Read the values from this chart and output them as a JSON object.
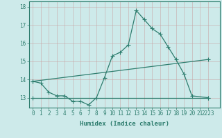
{
  "line1_x": [
    0,
    1,
    2,
    3,
    4,
    5,
    6,
    7,
    8,
    9,
    10,
    11,
    12,
    13,
    14,
    15,
    16,
    17,
    18,
    19,
    20,
    22
  ],
  "line1_y": [
    13.9,
    13.8,
    13.3,
    13.1,
    13.1,
    12.8,
    12.8,
    12.6,
    13.0,
    14.1,
    15.3,
    15.5,
    15.9,
    17.8,
    17.3,
    16.8,
    16.5,
    15.8,
    15.1,
    14.3,
    13.1,
    13.0
  ],
  "line2_x": [
    0,
    22
  ],
  "line2_y": [
    13.9,
    15.1
  ],
  "line3_x": [
    0,
    22
  ],
  "line3_y": [
    13.0,
    13.0
  ],
  "line_color": "#2e7d6e",
  "bg_color": "#cdeaea",
  "grid_color": "#b8d8d8",
  "xlabel": "Humidex (Indice chaleur)",
  "ylim": [
    12.45,
    18.3
  ],
  "xlim": [
    -0.5,
    23.5
  ],
  "yticks": [
    13,
    14,
    15,
    16,
    17,
    18
  ],
  "xtick_labels": [
    "0",
    "1",
    "2",
    "3",
    "4",
    "5",
    "6",
    "7",
    "8",
    "9",
    "10",
    "11",
    "12",
    "13",
    "14",
    "15",
    "16",
    "17",
    "18",
    "19",
    "20",
    "21",
    "2223"
  ],
  "tick_color": "#2e7d6e",
  "label_fontsize": 5.5,
  "xlabel_fontsize": 6.5
}
